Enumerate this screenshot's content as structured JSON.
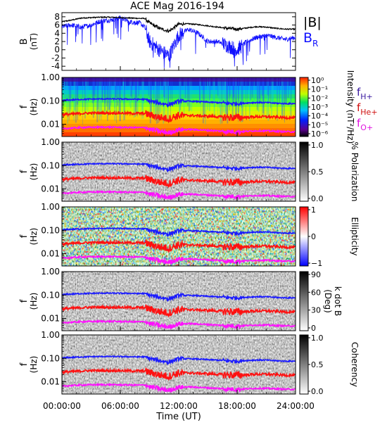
{
  "title": "ACE Mag 2016-194",
  "x_axis": {
    "label": "Time (UT)",
    "tick_labels": [
      "00:00:00",
      "06:00:00",
      "12:00:00",
      "18:00:00",
      "24:00:00"
    ],
    "range_hours": [
      0,
      24
    ]
  },
  "legend": {
    "b_total": "|B|",
    "b_r_main": "B",
    "b_r_sub": "R",
    "f_h_main": "f",
    "f_h_sub": "H+",
    "f_he_main": "f",
    "f_he_sub": "He+",
    "f_o_main": "f",
    "f_o_sub": "O+"
  },
  "colors": {
    "b_total": "#000000",
    "b_r": "#1010ff",
    "f_h": "#1a1aff",
    "f_he": "#ff1010",
    "f_o": "#ff10ff",
    "legend_f_h": "#3a1aa0",
    "legend_f_he": "#d01010",
    "legend_f_o": "#e010e0"
  },
  "panels": [
    {
      "name": "magnetic-field",
      "ylabel_main": "B",
      "ylabel_unit": "(nT)",
      "yticks": [
        "8",
        "6",
        "4",
        "2",
        "0",
        "-2",
        "-4"
      ],
      "yrange": [
        -5,
        9
      ]
    },
    {
      "name": "intensity",
      "ylabel_main": "f",
      "ylabel_unit": "(Hz)",
      "yticks": [
        "1.00",
        "0.10",
        "0.01"
      ],
      "colorbar_label": "Intensity (nT²/Hz)",
      "colorbar_ticks": [
        "10⁰",
        "10⁻¹",
        "10⁻²",
        "10⁻³",
        "10⁻⁴",
        "10⁻⁵",
        "10⁻⁶"
      ]
    },
    {
      "name": "polarization",
      "ylabel_main": "f",
      "ylabel_unit": "(Hz)",
      "yticks": [
        "1.00",
        "0.10",
        "0.01"
      ],
      "colorbar_label": "% Polarization",
      "colorbar_ticks": [
        "1.0",
        "0.5",
        "0.0"
      ]
    },
    {
      "name": "ellipticity",
      "ylabel_main": "f",
      "ylabel_unit": "(Hz)",
      "yticks": [
        "1.00",
        "0.10",
        "0.01"
      ],
      "colorbar_label": "Ellipticity",
      "colorbar_ticks": [
        "1",
        "0",
        "−1"
      ]
    },
    {
      "name": "k-dot-b",
      "ylabel_main": "f",
      "ylabel_unit": "(Hz)",
      "yticks": [
        "1.00",
        "0.10",
        "0.01"
      ],
      "colorbar_label_1": "k dot B",
      "colorbar_label_2": "(Deg)",
      "colorbar_ticks": [
        "90",
        "60",
        "30",
        "0"
      ]
    },
    {
      "name": "coherency",
      "ylabel_main": "f",
      "ylabel_unit": "(Hz)",
      "yticks": [
        "1.00",
        "0.10",
        "0.01"
      ],
      "colorbar_label": "Coherency",
      "colorbar_ticks": [
        "1.0",
        "0.5",
        "0.0"
      ]
    }
  ],
  "chart_data": {
    "type": "line",
    "title": "ACE Mag 2016-194",
    "xlabel": "Time (UT)",
    "x_hours": [
      0,
      1,
      2,
      3,
      4,
      5,
      6,
      7,
      8,
      8.5,
      9,
      10,
      11,
      12,
      13,
      14,
      15,
      16,
      17,
      18,
      19,
      20,
      21,
      22,
      23,
      24
    ],
    "series": [
      {
        "name": "|B|",
        "unit": "nT",
        "values": [
          6.8,
          7.2,
          7.7,
          7.8,
          7.9,
          7.9,
          7.8,
          7.7,
          7.6,
          7.6,
          6.5,
          5.2,
          4.5,
          6.2,
          6.3,
          6.1,
          5.8,
          5.5,
          5.2,
          5.0,
          5.3,
          5.6,
          5.5,
          5.2,
          5.0,
          5.0
        ]
      },
      {
        "name": "B_R",
        "unit": "nT",
        "values": [
          5.6,
          6.0,
          5.5,
          6.0,
          7.0,
          7.2,
          7.8,
          6.8,
          6.5,
          5.5,
          2.0,
          0.0,
          -1.5,
          3.5,
          5.0,
          4.0,
          2.0,
          2.0,
          1.0,
          0.0,
          2.0,
          3.0,
          3.5,
          3.0,
          2.5,
          3.0
        ]
      },
      {
        "name": "f_H+",
        "unit": "Hz",
        "values": [
          0.105,
          0.11,
          0.115,
          0.118,
          0.12,
          0.12,
          0.119,
          0.117,
          0.116,
          0.116,
          0.099,
          0.08,
          0.068,
          0.095,
          0.096,
          0.093,
          0.088,
          0.084,
          0.079,
          0.076,
          0.081,
          0.085,
          0.084,
          0.079,
          0.076,
          0.076
        ]
      },
      {
        "name": "f_He+",
        "unit": "Hz",
        "values": [
          0.026,
          0.027,
          0.029,
          0.03,
          0.03,
          0.03,
          0.03,
          0.029,
          0.029,
          0.029,
          0.025,
          0.02,
          0.017,
          0.024,
          0.024,
          0.023,
          0.022,
          0.021,
          0.02,
          0.019,
          0.02,
          0.021,
          0.021,
          0.02,
          0.019,
          0.019
        ]
      },
      {
        "name": "f_O+",
        "unit": "Hz",
        "values": [
          0.0065,
          0.0069,
          0.0073,
          0.0074,
          0.0075,
          0.0075,
          0.0074,
          0.0073,
          0.0072,
          0.0072,
          0.0062,
          0.005,
          0.0043,
          0.0059,
          0.006,
          0.0058,
          0.0055,
          0.0052,
          0.0049,
          0.0048,
          0.005,
          0.0053,
          0.0052,
          0.005,
          0.0048,
          0.0048
        ]
      }
    ],
    "frequency_range_hz": [
      0.003,
      1.0
    ],
    "y_scale_frequency_panels": "log",
    "grid": false
  }
}
